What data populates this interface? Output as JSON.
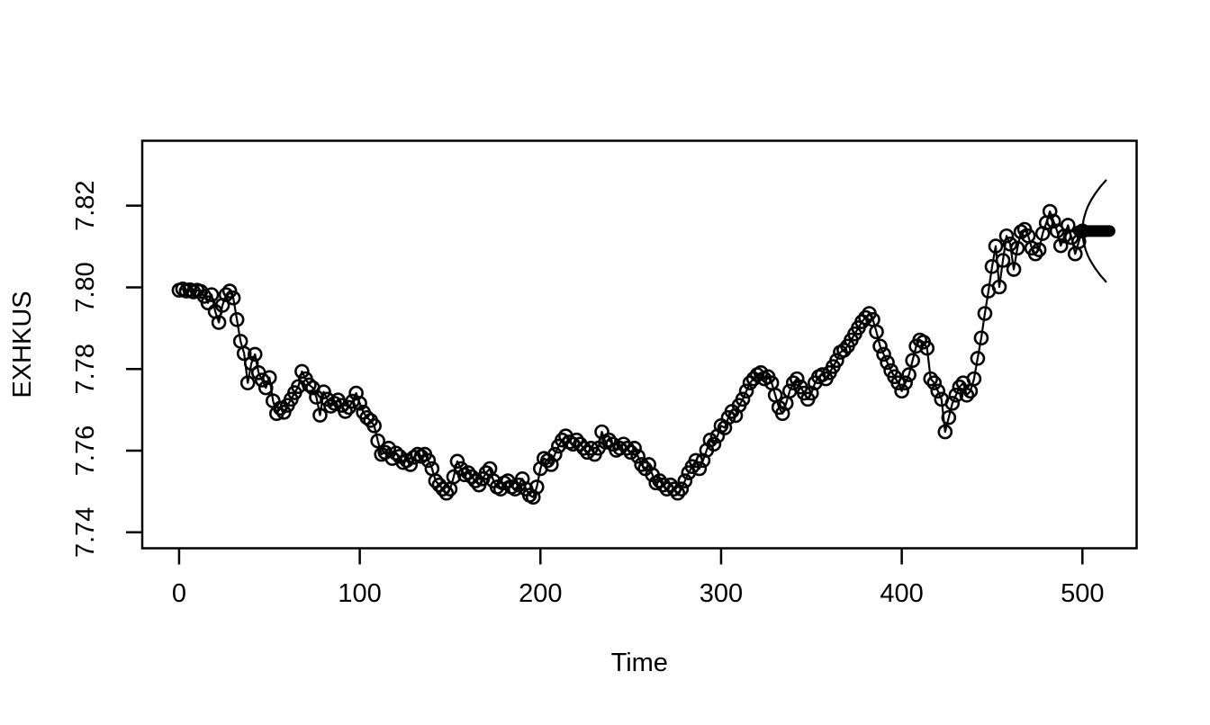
{
  "figure": {
    "kind": "R base graphics time series plot",
    "background": "#ffffff",
    "foreground": "#000000"
  },
  "chart_data": {
    "type": "line",
    "title": "",
    "xlabel": "Time",
    "ylabel": "EXHKUS",
    "marker": "open-circle",
    "grid": false,
    "legend": null,
    "x_ticks": [
      0,
      100,
      200,
      300,
      400,
      500
    ],
    "x_tick_labels": [
      "0",
      "100",
      "200",
      "300",
      "400",
      "500"
    ],
    "y_ticks": [
      7.74,
      7.76,
      7.78,
      7.8,
      7.82
    ],
    "y_tick_labels": [
      "7.74",
      "7.76",
      "7.78",
      "7.80",
      "7.82"
    ],
    "x_range": [
      -20.4,
      530.0
    ],
    "y_range": [
      7.7361,
      7.8359
    ],
    "series": [
      {
        "name": "EXHKUS",
        "points": [
          [
            0,
            7.7993
          ],
          [
            2,
            7.7996
          ],
          [
            4,
            7.7991
          ],
          [
            6,
            7.7994
          ],
          [
            8,
            7.7989
          ],
          [
            10,
            7.7993
          ],
          [
            12,
            7.799
          ],
          [
            14,
            7.7978
          ],
          [
            16,
            7.7962
          ],
          [
            18,
            7.7982
          ],
          [
            20,
            7.7941
          ],
          [
            22,
            7.7914
          ],
          [
            24,
            7.7956
          ],
          [
            26,
            7.7982
          ],
          [
            28,
            7.7991
          ],
          [
            30,
            7.7974
          ],
          [
            32,
            7.7921
          ],
          [
            34,
            7.7868
          ],
          [
            36,
            7.7838
          ],
          [
            38,
            7.7766
          ],
          [
            40,
            7.7814
          ],
          [
            42,
            7.7836
          ],
          [
            44,
            7.7791
          ],
          [
            46,
            7.7773
          ],
          [
            48,
            7.7754
          ],
          [
            50,
            7.7779
          ],
          [
            52,
            7.7722
          ],
          [
            54,
            7.7691
          ],
          [
            56,
            7.7704
          ],
          [
            58,
            7.7694
          ],
          [
            60,
            7.7711
          ],
          [
            62,
            7.7726
          ],
          [
            64,
            7.7742
          ],
          [
            66,
            7.7757
          ],
          [
            68,
            7.7794
          ],
          [
            70,
            7.7776
          ],
          [
            72,
            7.7761
          ],
          [
            74,
            7.7754
          ],
          [
            76,
            7.7731
          ],
          [
            78,
            7.7687
          ],
          [
            80,
            7.7744
          ],
          [
            82,
            7.7726
          ],
          [
            84,
            7.7709
          ],
          [
            86,
            7.7716
          ],
          [
            88,
            7.7724
          ],
          [
            90,
            7.7711
          ],
          [
            92,
            7.7696
          ],
          [
            94,
            7.7706
          ],
          [
            96,
            7.7721
          ],
          [
            98,
            7.7741
          ],
          [
            100,
            7.7716
          ],
          [
            102,
            7.7694
          ],
          [
            104,
            7.7681
          ],
          [
            106,
            7.7674
          ],
          [
            108,
            7.7661
          ],
          [
            110,
            7.7624
          ],
          [
            112,
            7.7591
          ],
          [
            114,
            7.7596
          ],
          [
            116,
            7.7606
          ],
          [
            118,
            7.7581
          ],
          [
            120,
            7.7594
          ],
          [
            122,
            7.7586
          ],
          [
            124,
            7.7571
          ],
          [
            126,
            7.7576
          ],
          [
            128,
            7.7566
          ],
          [
            130,
            7.7584
          ],
          [
            132,
            7.7591
          ],
          [
            134,
            7.7586
          ],
          [
            136,
            7.7591
          ],
          [
            138,
            7.7576
          ],
          [
            140,
            7.7556
          ],
          [
            142,
            7.7526
          ],
          [
            144,
            7.7516
          ],
          [
            146,
            7.7506
          ],
          [
            148,
            7.7496
          ],
          [
            150,
            7.7506
          ],
          [
            152,
            7.7536
          ],
          [
            154,
            7.7574
          ],
          [
            156,
            7.7556
          ],
          [
            158,
            7.7541
          ],
          [
            160,
            7.7546
          ],
          [
            162,
            7.7536
          ],
          [
            164,
            7.7526
          ],
          [
            166,
            7.7516
          ],
          [
            168,
            7.7531
          ],
          [
            170,
            7.7546
          ],
          [
            172,
            7.7556
          ],
          [
            174,
            7.7526
          ],
          [
            176,
            7.7511
          ],
          [
            178,
            7.7506
          ],
          [
            180,
            7.7521
          ],
          [
            182,
            7.7526
          ],
          [
            184,
            7.7511
          ],
          [
            186,
            7.7506
          ],
          [
            188,
            7.7516
          ],
          [
            190,
            7.7531
          ],
          [
            192,
            7.7506
          ],
          [
            194,
            7.7491
          ],
          [
            196,
            7.7486
          ],
          [
            198,
            7.7511
          ],
          [
            200,
            7.7556
          ],
          [
            202,
            7.7581
          ],
          [
            204,
            7.7576
          ],
          [
            206,
            7.7566
          ],
          [
            208,
            7.7591
          ],
          [
            210,
            7.7611
          ],
          [
            212,
            7.7626
          ],
          [
            214,
            7.7636
          ],
          [
            216,
            7.7621
          ],
          [
            218,
            7.7616
          ],
          [
            220,
            7.7626
          ],
          [
            222,
            7.7616
          ],
          [
            224,
            7.7606
          ],
          [
            226,
            7.7596
          ],
          [
            228,
            7.7606
          ],
          [
            230,
            7.7591
          ],
          [
            232,
            7.7606
          ],
          [
            234,
            7.7646
          ],
          [
            236,
            7.7621
          ],
          [
            238,
            7.7626
          ],
          [
            240,
            7.7616
          ],
          [
            242,
            7.7601
          ],
          [
            244,
            7.7606
          ],
          [
            246,
            7.7616
          ],
          [
            248,
            7.7606
          ],
          [
            250,
            7.7596
          ],
          [
            252,
            7.7606
          ],
          [
            254,
            7.7586
          ],
          [
            256,
            7.7566
          ],
          [
            258,
            7.7556
          ],
          [
            260,
            7.7566
          ],
          [
            262,
            7.7541
          ],
          [
            264,
            7.7521
          ],
          [
            266,
            7.7526
          ],
          [
            268,
            7.7516
          ],
          [
            270,
            7.7506
          ],
          [
            272,
            7.7516
          ],
          [
            274,
            7.7506
          ],
          [
            276,
            7.7496
          ],
          [
            278,
            7.7506
          ],
          [
            280,
            7.7526
          ],
          [
            282,
            7.7546
          ],
          [
            284,
            7.7561
          ],
          [
            286,
            7.7576
          ],
          [
            288,
            7.7556
          ],
          [
            290,
            7.7576
          ],
          [
            292,
            7.7601
          ],
          [
            294,
            7.7626
          ],
          [
            296,
            7.7616
          ],
          [
            298,
            7.7636
          ],
          [
            300,
            7.7661
          ],
          [
            302,
            7.7656
          ],
          [
            304,
            7.7681
          ],
          [
            306,
            7.7696
          ],
          [
            308,
            7.7686
          ],
          [
            310,
            7.7711
          ],
          [
            312,
            7.7726
          ],
          [
            314,
            7.7746
          ],
          [
            316,
            7.7766
          ],
          [
            318,
            7.7776
          ],
          [
            320,
            7.7786
          ],
          [
            322,
            7.7791
          ],
          [
            324,
            7.7776
          ],
          [
            326,
            7.7781
          ],
          [
            328,
            7.7766
          ],
          [
            330,
            7.7736
          ],
          [
            332,
            7.7706
          ],
          [
            334,
            7.7691
          ],
          [
            336,
            7.7716
          ],
          [
            338,
            7.7746
          ],
          [
            340,
            7.7766
          ],
          [
            342,
            7.7776
          ],
          [
            344,
            7.7756
          ],
          [
            346,
            7.7741
          ],
          [
            348,
            7.7726
          ],
          [
            350,
            7.7741
          ],
          [
            352,
            7.7766
          ],
          [
            354,
            7.7781
          ],
          [
            356,
            7.7786
          ],
          [
            358,
            7.7776
          ],
          [
            360,
            7.7791
          ],
          [
            362,
            7.7806
          ],
          [
            364,
            7.7821
          ],
          [
            366,
            7.7841
          ],
          [
            368,
            7.7846
          ],
          [
            370,
            7.7856
          ],
          [
            372,
            7.7871
          ],
          [
            374,
            7.7886
          ],
          [
            376,
            7.7901
          ],
          [
            378,
            7.7916
          ],
          [
            380,
            7.7926
          ],
          [
            382,
            7.7936
          ],
          [
            384,
            7.7921
          ],
          [
            386,
            7.7891
          ],
          [
            388,
            7.7856
          ],
          [
            390,
            7.7836
          ],
          [
            392,
            7.7816
          ],
          [
            394,
            7.7796
          ],
          [
            396,
            7.7781
          ],
          [
            398,
            7.7766
          ],
          [
            400,
            7.7746
          ],
          [
            402,
            7.7766
          ],
          [
            404,
            7.7786
          ],
          [
            406,
            7.7821
          ],
          [
            408,
            7.7856
          ],
          [
            410,
            7.7871
          ],
          [
            412,
            7.7866
          ],
          [
            414,
            7.7851
          ],
          [
            416,
            7.7776
          ],
          [
            418,
            7.7766
          ],
          [
            420,
            7.7746
          ],
          [
            422,
            7.7726
          ],
          [
            424,
            7.7646
          ],
          [
            426,
            7.7681
          ],
          [
            428,
            7.7716
          ],
          [
            430,
            7.7736
          ],
          [
            432,
            7.7756
          ],
          [
            434,
            7.7766
          ],
          [
            436,
            7.7736
          ],
          [
            438,
            7.7746
          ],
          [
            440,
            7.7776
          ],
          [
            442,
            7.7826
          ],
          [
            444,
            7.7876
          ],
          [
            446,
            7.7936
          ],
          [
            448,
            7.7991
          ],
          [
            450,
            7.8051
          ],
          [
            452,
            7.8101
          ],
          [
            454,
            7.8001
          ],
          [
            456,
            7.8066
          ],
          [
            458,
            7.8126
          ],
          [
            460,
            7.8106
          ],
          [
            462,
            7.8044
          ],
          [
            464,
            7.8096
          ],
          [
            466,
            7.8136
          ],
          [
            468,
            7.8142
          ],
          [
            470,
            7.8126
          ],
          [
            472,
            7.8096
          ],
          [
            474,
            7.8082
          ],
          [
            476,
            7.8092
          ],
          [
            478,
            7.8132
          ],
          [
            480,
            7.8158
          ],
          [
            482,
            7.8186
          ],
          [
            484,
            7.8162
          ],
          [
            486,
            7.8138
          ],
          [
            488,
            7.8102
          ],
          [
            490,
            7.8126
          ],
          [
            492,
            7.8152
          ],
          [
            494,
            7.8122
          ],
          [
            496,
            7.8082
          ],
          [
            498,
            7.8112
          ],
          [
            500,
            7.8138
          ]
        ]
      }
    ],
    "forecast": {
      "mean_value": 7.8138,
      "mean_t_start": 498,
      "mean_t_end": 515,
      "ci_upper": [
        [
          500,
          7.8138
        ],
        [
          500.5,
          7.8162
        ],
        [
          501,
          7.8172
        ],
        [
          502,
          7.8187
        ],
        [
          503,
          7.8198
        ],
        [
          504,
          7.8207
        ],
        [
          505,
          7.8215
        ],
        [
          506,
          7.8222
        ],
        [
          507,
          7.8229
        ],
        [
          508,
          7.8235
        ],
        [
          509,
          7.8241
        ],
        [
          510,
          7.8247
        ],
        [
          511,
          7.8252
        ],
        [
          512,
          7.8257
        ],
        [
          513,
          7.8262
        ]
      ],
      "ci_lower": [
        [
          500,
          7.8138
        ],
        [
          500.5,
          7.8114
        ],
        [
          501,
          7.8104
        ],
        [
          502,
          7.8089
        ],
        [
          503,
          7.8078
        ],
        [
          504,
          7.8069
        ],
        [
          505,
          7.8061
        ],
        [
          506,
          7.8054
        ],
        [
          507,
          7.8047
        ],
        [
          508,
          7.8041
        ],
        [
          509,
          7.8035
        ],
        [
          510,
          7.8029
        ],
        [
          511,
          7.8024
        ],
        [
          512,
          7.8019
        ],
        [
          513,
          7.8014
        ]
      ]
    },
    "colors": {
      "line": "#000000",
      "marker": "#000000",
      "box": "#000000",
      "background": "#ffffff"
    }
  }
}
